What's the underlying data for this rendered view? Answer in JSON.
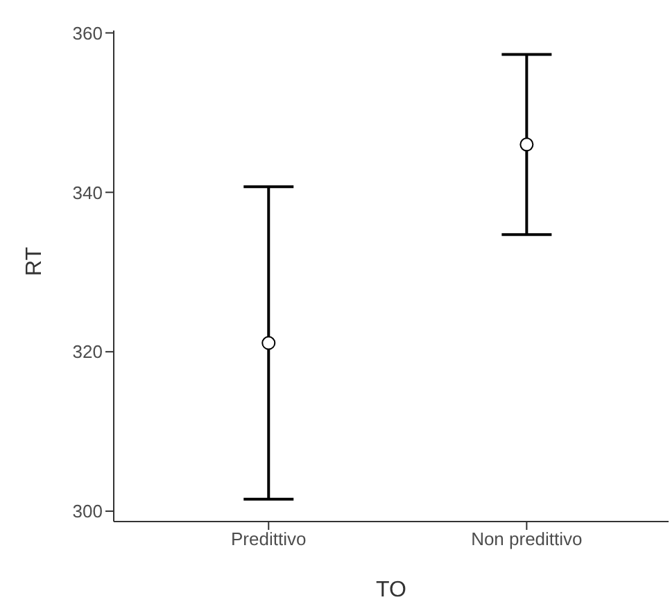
{
  "chart_data": {
    "type": "scatter",
    "xlabel": "TO",
    "ylabel": "RT",
    "categories": [
      "Predittivo",
      "Non predittivo"
    ],
    "series": [
      {
        "color": "#000000",
        "values": [
          321.1,
          346.0
        ],
        "errors": [
          19.6,
          11.3
        ]
      }
    ],
    "ylim": [
      298.7,
      360.3
    ],
    "yticks": [
      300,
      320,
      340,
      360
    ],
    "marker": "circle",
    "grid": false,
    "legend": false
  }
}
